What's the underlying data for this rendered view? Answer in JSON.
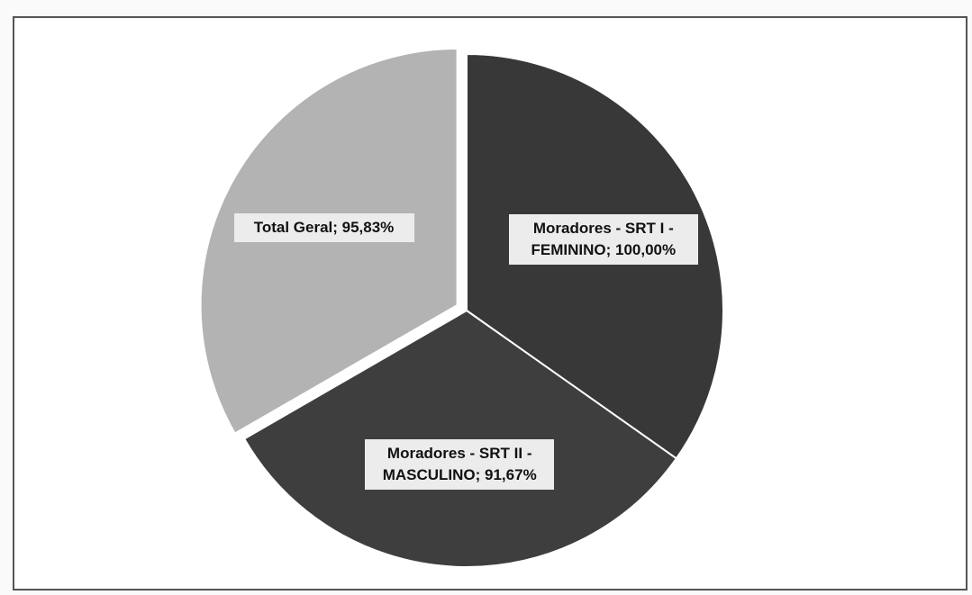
{
  "chart_data": {
    "type": "pie",
    "labels": [
      "Moradores - SRT I - FEMININO; 100,00%",
      "Moradores - SRT II - MASCULINO; 91,67%",
      "Total Geral; 95,83%"
    ],
    "values": [
      100.0,
      91.67,
      95.83
    ],
    "colors": [
      "#383838",
      "#3e3e3e",
      "#b3b3b3"
    ],
    "exploded": [
      false,
      false,
      true
    ]
  }
}
